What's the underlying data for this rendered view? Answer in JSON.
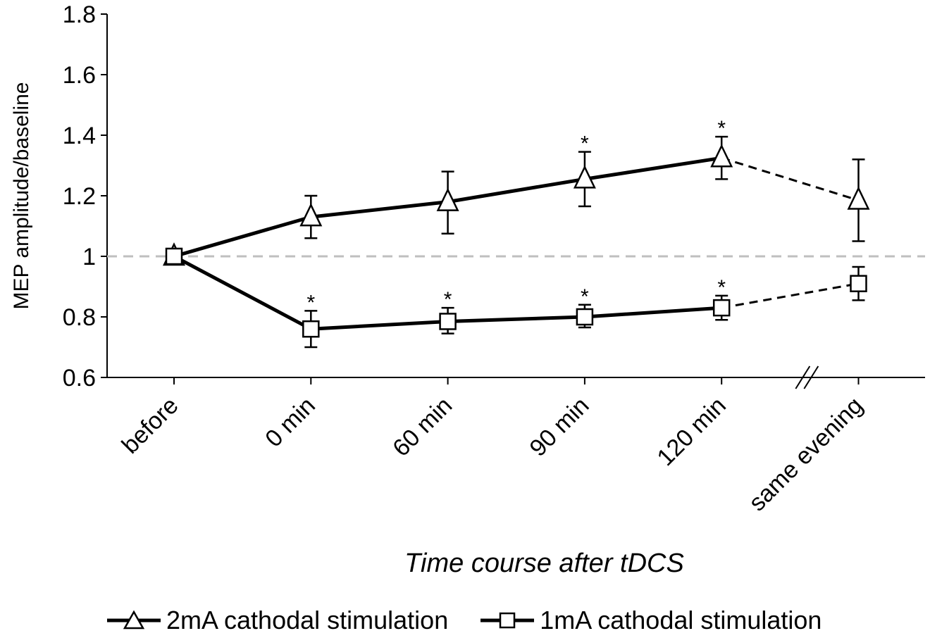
{
  "chart_data": {
    "type": "line",
    "categories": [
      "before",
      "0 min",
      "60 min",
      "90 min",
      "120 min",
      "same evening"
    ],
    "xlabel": "Time course after tDCS",
    "ylabel": "MEP amplitude/baseline",
    "ylim": [
      0.6,
      1.8
    ],
    "yticks": [
      "0.6",
      "0.8",
      "1",
      "1.2",
      "1.4",
      "1.6",
      "1.8"
    ],
    "reference_line": 1,
    "axis_break_between": [
      "120 min",
      "same evening"
    ],
    "grid": false,
    "legend_position": "bottom",
    "series": [
      {
        "name": "2mA cathodal stimulation",
        "marker": "triangle",
        "values": [
          1.0,
          1.13,
          1.18,
          1.255,
          1.325,
          1.185
        ],
        "error_upper": [
          1.0,
          1.2,
          1.28,
          1.345,
          1.395,
          1.32
        ],
        "error_lower": [
          1.0,
          1.06,
          1.075,
          1.165,
          1.255,
          1.05
        ],
        "significant": [
          "",
          "",
          "",
          "*",
          "*",
          ""
        ],
        "dashed_last_segment": true
      },
      {
        "name": "1mA cathodal stimulation",
        "marker": "square",
        "values": [
          1.0,
          0.76,
          0.785,
          0.8,
          0.83,
          0.91
        ],
        "error_upper": [
          1.0,
          0.82,
          0.83,
          0.84,
          0.87,
          0.965
        ],
        "error_lower": [
          1.0,
          0.7,
          0.745,
          0.765,
          0.79,
          0.855
        ],
        "significant": [
          "",
          "*",
          "*",
          "*",
          "*",
          ""
        ],
        "dashed_last_segment": true
      }
    ]
  },
  "legend": {
    "items": [
      {
        "label": "2mA cathodal stimulation",
        "marker": "triangle-icon"
      },
      {
        "label": "1mA cathodal stimulation",
        "marker": "square-icon"
      }
    ]
  },
  "colors": {
    "line": "#000000",
    "marker_fill": "#ffffff",
    "reference": "#bfbfbf"
  }
}
